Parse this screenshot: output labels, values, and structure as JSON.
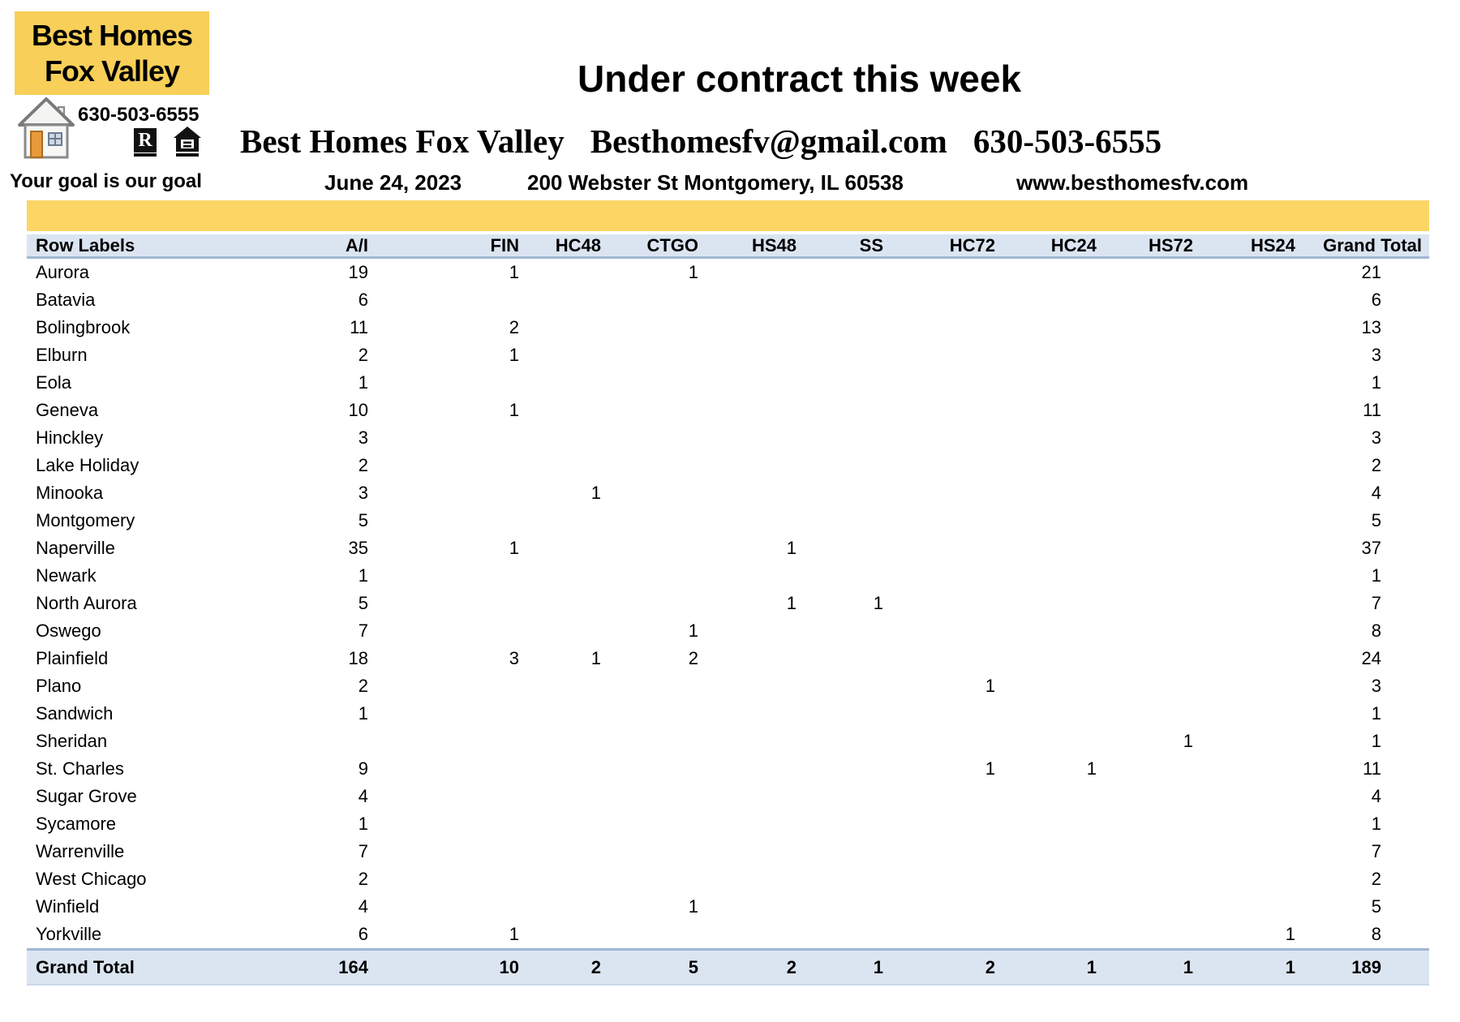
{
  "logo": {
    "name_line1": "Best Homes",
    "name_line2": "Fox Valley",
    "phone": "630-503-6555",
    "tagline": "Your goal is our goal",
    "icons": {
      "house": "house-icon",
      "realtor_r_glyph": "R",
      "equal_housing_glyph": "="
    }
  },
  "header": {
    "title": "Under contract this week",
    "company": "Best Homes Fox Valley",
    "email": "Besthomesfv@gmail.com",
    "phone": "630-503-6555",
    "date": "June 24, 2023",
    "address": "200 Webster St Montgomery, IL 60538",
    "website": "www.besthomesfv.com"
  },
  "colors": {
    "logo_yellow": "#F8CF58",
    "band_yellow": "#FBD665",
    "header_row_blue": "#DBE5F1",
    "table_border_blue": "#9FB7D2"
  },
  "table": {
    "columns": [
      "Row Labels",
      "A/I",
      "FIN",
      "HC48",
      "CTGO",
      "HS48",
      "SS",
      "HC72",
      "HC24",
      "HS72",
      "HS24",
      "Grand Total"
    ],
    "rows": [
      {
        "label": "Aurora",
        "values": [
          "19",
          "1",
          "",
          "1",
          "",
          "",
          "",
          "",
          "",
          ""
        ],
        "total": "21"
      },
      {
        "label": "Batavia",
        "values": [
          "6",
          "",
          "",
          "",
          "",
          "",
          "",
          "",
          "",
          ""
        ],
        "total": "6"
      },
      {
        "label": "Bolingbrook",
        "values": [
          "11",
          "2",
          "",
          "",
          "",
          "",
          "",
          "",
          "",
          ""
        ],
        "total": "13"
      },
      {
        "label": "Elburn",
        "values": [
          "2",
          "1",
          "",
          "",
          "",
          "",
          "",
          "",
          "",
          ""
        ],
        "total": "3"
      },
      {
        "label": "Eola",
        "values": [
          "1",
          "",
          "",
          "",
          "",
          "",
          "",
          "",
          "",
          ""
        ],
        "total": "1"
      },
      {
        "label": "Geneva",
        "values": [
          "10",
          "1",
          "",
          "",
          "",
          "",
          "",
          "",
          "",
          ""
        ],
        "total": "11"
      },
      {
        "label": "Hinckley",
        "values": [
          "3",
          "",
          "",
          "",
          "",
          "",
          "",
          "",
          "",
          ""
        ],
        "total": "3"
      },
      {
        "label": "Lake Holiday",
        "values": [
          "2",
          "",
          "",
          "",
          "",
          "",
          "",
          "",
          "",
          ""
        ],
        "total": "2"
      },
      {
        "label": "Minooka",
        "values": [
          "3",
          "",
          "1",
          "",
          "",
          "",
          "",
          "",
          "",
          ""
        ],
        "total": "4"
      },
      {
        "label": "Montgomery",
        "values": [
          "5",
          "",
          "",
          "",
          "",
          "",
          "",
          "",
          "",
          ""
        ],
        "total": "5"
      },
      {
        "label": "Naperville",
        "values": [
          "35",
          "1",
          "",
          "",
          "1",
          "",
          "",
          "",
          "",
          ""
        ],
        "total": "37"
      },
      {
        "label": "Newark",
        "values": [
          "1",
          "",
          "",
          "",
          "",
          "",
          "",
          "",
          "",
          ""
        ],
        "total": "1"
      },
      {
        "label": "North Aurora",
        "values": [
          "5",
          "",
          "",
          "",
          "1",
          "1",
          "",
          "",
          "",
          ""
        ],
        "total": "7"
      },
      {
        "label": "Oswego",
        "values": [
          "7",
          "",
          "",
          "1",
          "",
          "",
          "",
          "",
          "",
          ""
        ],
        "total": "8"
      },
      {
        "label": "Plainfield",
        "values": [
          "18",
          "3",
          "1",
          "2",
          "",
          "",
          "",
          "",
          "",
          ""
        ],
        "total": "24"
      },
      {
        "label": "Plano",
        "values": [
          "2",
          "",
          "",
          "",
          "",
          "",
          "1",
          "",
          "",
          ""
        ],
        "total": "3"
      },
      {
        "label": "Sandwich",
        "values": [
          "1",
          "",
          "",
          "",
          "",
          "",
          "",
          "",
          "",
          ""
        ],
        "total": "1"
      },
      {
        "label": "Sheridan",
        "values": [
          "",
          "",
          "",
          "",
          "",
          "",
          "",
          "",
          "1",
          ""
        ],
        "total": "1"
      },
      {
        "label": "St. Charles",
        "values": [
          "9",
          "",
          "",
          "",
          "",
          "",
          "1",
          "1",
          "",
          ""
        ],
        "total": "11"
      },
      {
        "label": "Sugar Grove",
        "values": [
          "4",
          "",
          "",
          "",
          "",
          "",
          "",
          "",
          "",
          ""
        ],
        "total": "4"
      },
      {
        "label": "Sycamore",
        "values": [
          "1",
          "",
          "",
          "",
          "",
          "",
          "",
          "",
          "",
          ""
        ],
        "total": "1"
      },
      {
        "label": "Warrenville",
        "values": [
          "7",
          "",
          "",
          "",
          "",
          "",
          "",
          "",
          "",
          ""
        ],
        "total": "7"
      },
      {
        "label": "West Chicago",
        "values": [
          "2",
          "",
          "",
          "",
          "",
          "",
          "",
          "",
          "",
          ""
        ],
        "total": "2"
      },
      {
        "label": "Winfield",
        "values": [
          "4",
          "",
          "",
          "1",
          "",
          "",
          "",
          "",
          "",
          ""
        ],
        "total": "5"
      },
      {
        "label": "Yorkville",
        "values": [
          "6",
          "1",
          "",
          "",
          "",
          "",
          "",
          "",
          "",
          "1"
        ],
        "total": "8"
      }
    ],
    "grand_total": {
      "label": "Grand Total",
      "values": [
        "164",
        "10",
        "2",
        "5",
        "2",
        "1",
        "2",
        "1",
        "1",
        "1"
      ],
      "total": "189"
    }
  }
}
